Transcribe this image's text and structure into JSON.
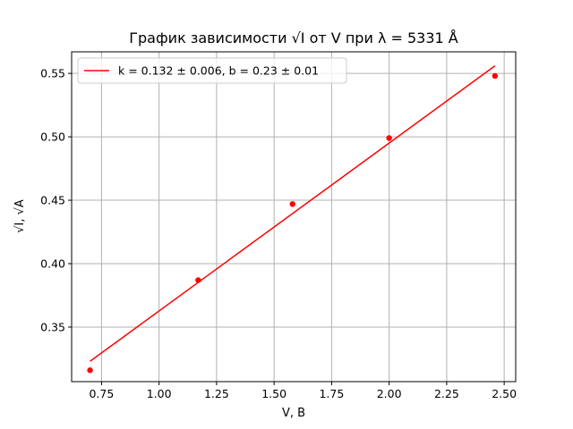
{
  "chart_data": {
    "type": "scatter",
    "title": "График зависимости √I от V при λ = 5331 Å",
    "xlabel": "V, В",
    "ylabel": "√I, √A",
    "xlim": [
      0.62,
      2.55
    ],
    "ylim": [
      0.307,
      0.567
    ],
    "xticks": [
      0.75,
      1.0,
      1.25,
      1.5,
      1.75,
      2.0,
      2.25,
      2.5
    ],
    "xtick_labels": [
      "0.75",
      "1.00",
      "1.25",
      "1.50",
      "1.75",
      "2.00",
      "2.25",
      "2.50"
    ],
    "yticks": [
      0.35,
      0.4,
      0.45,
      0.5,
      0.55
    ],
    "ytick_labels": [
      "0.35",
      "0.40",
      "0.45",
      "0.50",
      "0.55"
    ],
    "grid": true,
    "legend_position": "top-left",
    "series": [
      {
        "kind": "points",
        "color": "#ff0000",
        "x": [
          0.7,
          1.17,
          1.58,
          2.0,
          2.46
        ],
        "y": [
          0.316,
          0.387,
          0.447,
          0.499,
          0.548
        ]
      },
      {
        "kind": "fit-line",
        "name": "k = 0.132 ± 0.006, b = 0.23 ± 0.01",
        "color": "#ff0000",
        "x": [
          0.7,
          2.46
        ],
        "y": [
          0.323,
          0.556
        ]
      }
    ]
  }
}
